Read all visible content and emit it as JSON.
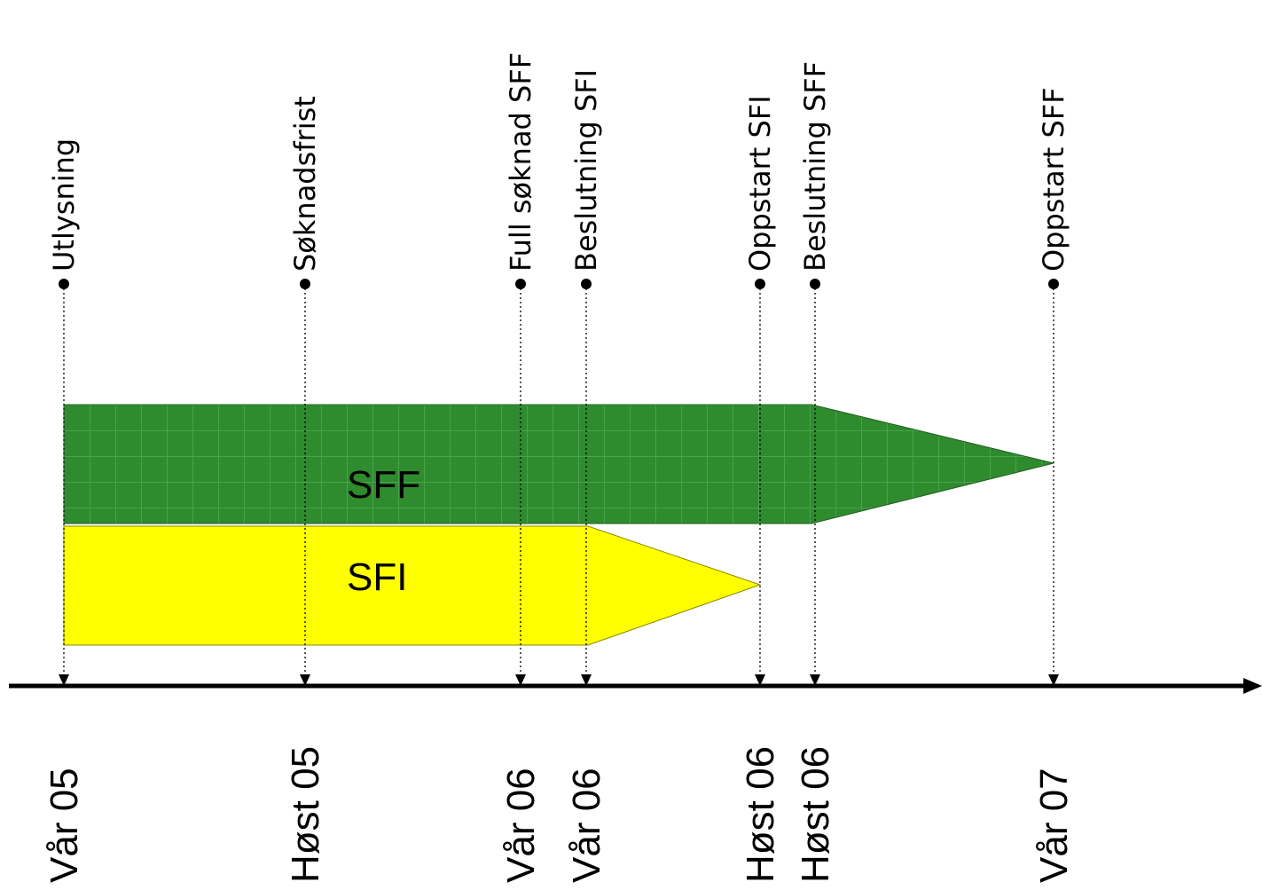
{
  "colors": {
    "sff_fill": "#2e8b2e",
    "sfi_fill": "#ffff00",
    "axis": "#000000",
    "text": "#000000"
  },
  "milestones": [
    {
      "label": "Utlysning",
      "period": "Vår 05"
    },
    {
      "label": "Søknadsfrist",
      "period": "Høst 05"
    },
    {
      "label": "Full søknad SFF",
      "period": "Vår 06"
    },
    {
      "label": "Beslutning SFI",
      "period": "Vår 06"
    },
    {
      "label": "Oppstart SFI",
      "period": "Høst 06"
    },
    {
      "label": "Beslutning SFF",
      "period": "Høst 06"
    },
    {
      "label": "Oppstart SFF",
      "period": "Vår 07"
    }
  ],
  "bars": {
    "sff": {
      "label": "SFF",
      "from": "Utlysning",
      "to": "Oppstart SFF"
    },
    "sfi": {
      "label": "SFI",
      "from": "Utlysning",
      "to": "Oppstart SFI"
    }
  }
}
